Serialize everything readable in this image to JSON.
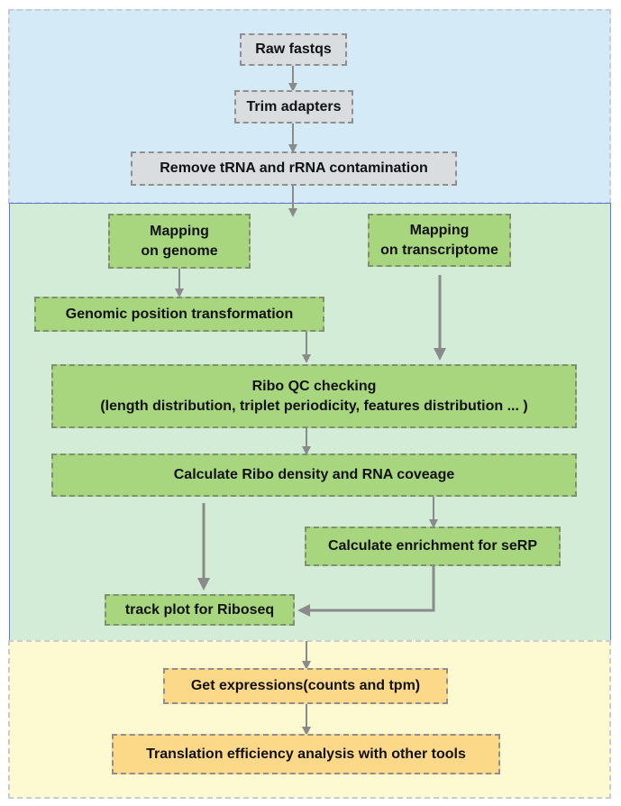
{
  "nodes": {
    "raw_fastqs": "Raw fastqs",
    "trim_adapters": "Trim adapters",
    "remove_contamination": "Remove tRNA and rRNA contamination",
    "mapping_genome": "Mapping\non genome",
    "mapping_transcriptome": "Mapping\non transcriptome",
    "genomic_position": "Genomic position transformation",
    "ribo_qc": "Ribo QC checking\n(length distribution, triplet periodicity, features distribution ... )",
    "ribo_density": "Calculate Ribo density and RNA coveage",
    "enrichment": "Calculate enrichment for seRP",
    "track_plot": "track plot for Riboseq",
    "expressions": "Get expressions(counts and tpm)",
    "translation_efficiency": "Translation efficiency analysis with other tools"
  },
  "colors": {
    "preprocess_panel": "#d4ebf7",
    "mapping_panel": "#d3ecd8",
    "downstream_panel": "#fdfad1",
    "grey_box": "#d9dde0",
    "green_box": "#a8d67e",
    "orange_box": "#fcd889",
    "arrow": "#8a8a8a"
  }
}
